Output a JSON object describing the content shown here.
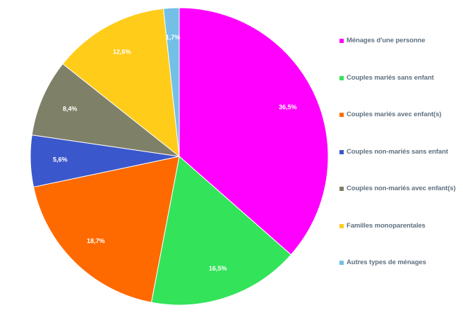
{
  "chart_data": {
    "type": "pie",
    "title": "",
    "start": "top",
    "direction": "clockwise",
    "legend_position": "right",
    "slices": [
      {
        "label": "Ménages d'une personne",
        "value": 36.5,
        "value_label": "36,5%",
        "color": "#ff00ff"
      },
      {
        "label": "Couples mariés sans enfant",
        "value": 16.5,
        "value_label": "16,5%",
        "color": "#33e35a"
      },
      {
        "label": "Couples mariés avec enfant(s)",
        "value": 18.7,
        "value_label": "18,7%",
        "color": "#ff6a00"
      },
      {
        "label": "Couples non-mariés sans enfant",
        "value": 5.6,
        "value_label": "5,6%",
        "color": "#3b57cc"
      },
      {
        "label": "Couples non-mariés avec enfant(s)",
        "value": 8.4,
        "value_label": "8,4%",
        "color": "#7f8068"
      },
      {
        "label": "Familles monoparentales",
        "value": 12.6,
        "value_label": "12,6%",
        "color": "#ffcc1a"
      },
      {
        "label": "Autres types de ménages",
        "value": 1.7,
        "value_label": "1,7%",
        "color": "#73c0e6"
      }
    ]
  }
}
